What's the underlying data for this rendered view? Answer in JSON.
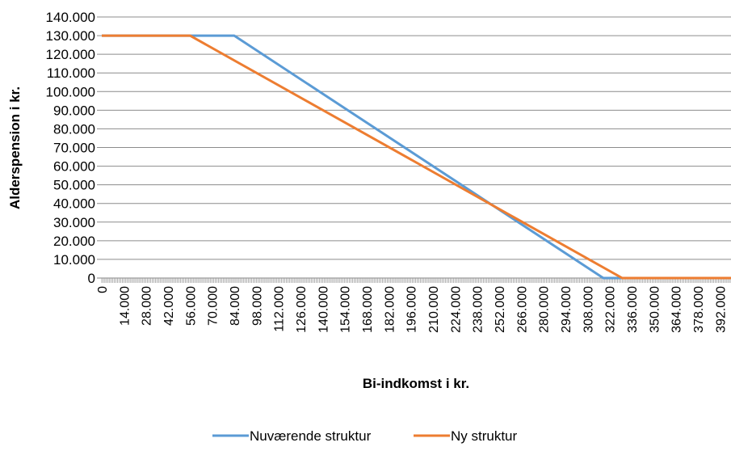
{
  "chart_data": {
    "type": "line",
    "xlabel": "Bi-indkomst i kr.",
    "ylabel": "Alderspension i kr.",
    "xlim": [
      0,
      399000
    ],
    "ylim": [
      0,
      140000
    ],
    "grid": true,
    "legend_position": "bottom",
    "y_ticks": [
      "0",
      "10.000",
      "20.000",
      "30.000",
      "40.000",
      "50.000",
      "60.000",
      "70.000",
      "80.000",
      "90.000",
      "100.000",
      "110.000",
      "120.000",
      "130.000",
      "140.000"
    ],
    "x_ticks": [
      "0",
      "14.000",
      "28.000",
      "42.000",
      "56.000",
      "70.000",
      "84.000",
      "98.000",
      "112.000",
      "126.000",
      "140.000",
      "154.000",
      "168.000",
      "182.000",
      "196.000",
      "210.000",
      "224.000",
      "238.000",
      "252.000",
      "266.000",
      "280.000",
      "294.000",
      "308.000",
      "322.000",
      "336.000",
      "350.000",
      "364.000",
      "378.000",
      "392.000"
    ],
    "series": [
      {
        "name": "Nuværende struktur",
        "color": "#5B9BD5",
        "points": [
          [
            0,
            130000
          ],
          [
            84000,
            130000
          ],
          [
            318000,
            0
          ],
          [
            399000,
            0
          ]
        ]
      },
      {
        "name": "Ny struktur",
        "color": "#ED7D31",
        "points": [
          [
            0,
            130000
          ],
          [
            56000,
            130000
          ],
          [
            330000,
            0
          ],
          [
            399000,
            0
          ]
        ]
      }
    ]
  }
}
